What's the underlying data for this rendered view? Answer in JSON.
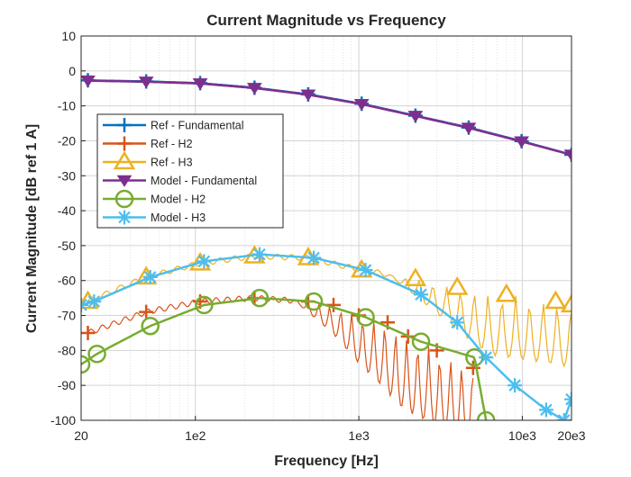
{
  "chart_data": {
    "type": "line",
    "title": "Current Magnitude vs Frequency",
    "xlabel": "Frequency [Hz]",
    "ylabel": "Current Magnitude [dB ref 1 A]",
    "xscale": "log",
    "xlim": [
      20,
      20000
    ],
    "ylim": [
      -100,
      10
    ],
    "grid": "on (major and minor)",
    "legend_position": "upper-left",
    "x_ticks": [
      {
        "value": 20,
        "label": "20"
      },
      {
        "value": 100,
        "label": "1e2"
      },
      {
        "value": 1000,
        "label": "1e3"
      },
      {
        "value": 10000,
        "label": "10e3"
      },
      {
        "value": 20000,
        "label": "20e3"
      }
    ],
    "y_ticks": [
      10,
      0,
      -10,
      -20,
      -30,
      -40,
      -50,
      -60,
      -70,
      -80,
      -90,
      -100
    ],
    "series": [
      {
        "name": "Ref - Fundamental",
        "color": "#0072BD",
        "marker": "plus",
        "x": [
          22,
          50,
          107,
          230,
          490,
          1040,
          2220,
          4700,
          9900,
          20000
        ],
        "y": [
          -2.7,
          -3.0,
          -3.5,
          -4.8,
          -6.7,
          -9.4,
          -12.8,
          -16.2,
          -20.1,
          -24
        ]
      },
      {
        "name": "Ref - H2",
        "color": "#D95319",
        "marker": "plus",
        "x": [
          22,
          50,
          107,
          230,
          490,
          700,
          1000,
          1500,
          2000,
          3000,
          5000
        ],
        "y": [
          -75,
          -69,
          -66,
          -65,
          -66,
          -67,
          -70,
          -72,
          -76,
          -80,
          -85
        ]
      },
      {
        "name": "Ref - H3",
        "color": "#EDB120",
        "marker": "triangle-up",
        "x": [
          22,
          50,
          107,
          230,
          490,
          1040,
          2220,
          4000,
          8000,
          16000,
          20000
        ],
        "y": [
          -66,
          -59,
          -55,
          -53,
          -53.5,
          -57,
          -59.5,
          -62,
          -64,
          -66,
          -67
        ]
      },
      {
        "name": "Model - Fundamental",
        "color": "#7E2F8E",
        "marker": "triangle-down",
        "x": [
          22,
          50,
          107,
          230,
          490,
          1040,
          2220,
          4700,
          9900,
          20000
        ],
        "y": [
          -2.8,
          -3.1,
          -3.6,
          -4.9,
          -6.8,
          -9.5,
          -12.9,
          -16.3,
          -20.2,
          -24
        ]
      },
      {
        "name": "Model - H2",
        "color": "#77AC30",
        "marker": "circle",
        "x": [
          20,
          25,
          53,
          113,
          247,
          530,
          1100,
          2400,
          5100,
          6000
        ],
        "y": [
          -84,
          -81,
          -73,
          -67,
          -65,
          -66,
          -70.5,
          -77.5,
          -82,
          -100
        ]
      },
      {
        "name": "Model - H3",
        "color": "#4DBEEE",
        "marker": "asterisk",
        "x": [
          20,
          24,
          53,
          113,
          247,
          530,
          1100,
          2400,
          4000,
          6000,
          9000,
          14000,
          18000,
          20000
        ],
        "y": [
          -67,
          -66,
          -59,
          -54.5,
          -52.5,
          -53.5,
          -57,
          -64,
          -72,
          -82,
          -90,
          -97,
          -100,
          -94
        ]
      }
    ]
  }
}
